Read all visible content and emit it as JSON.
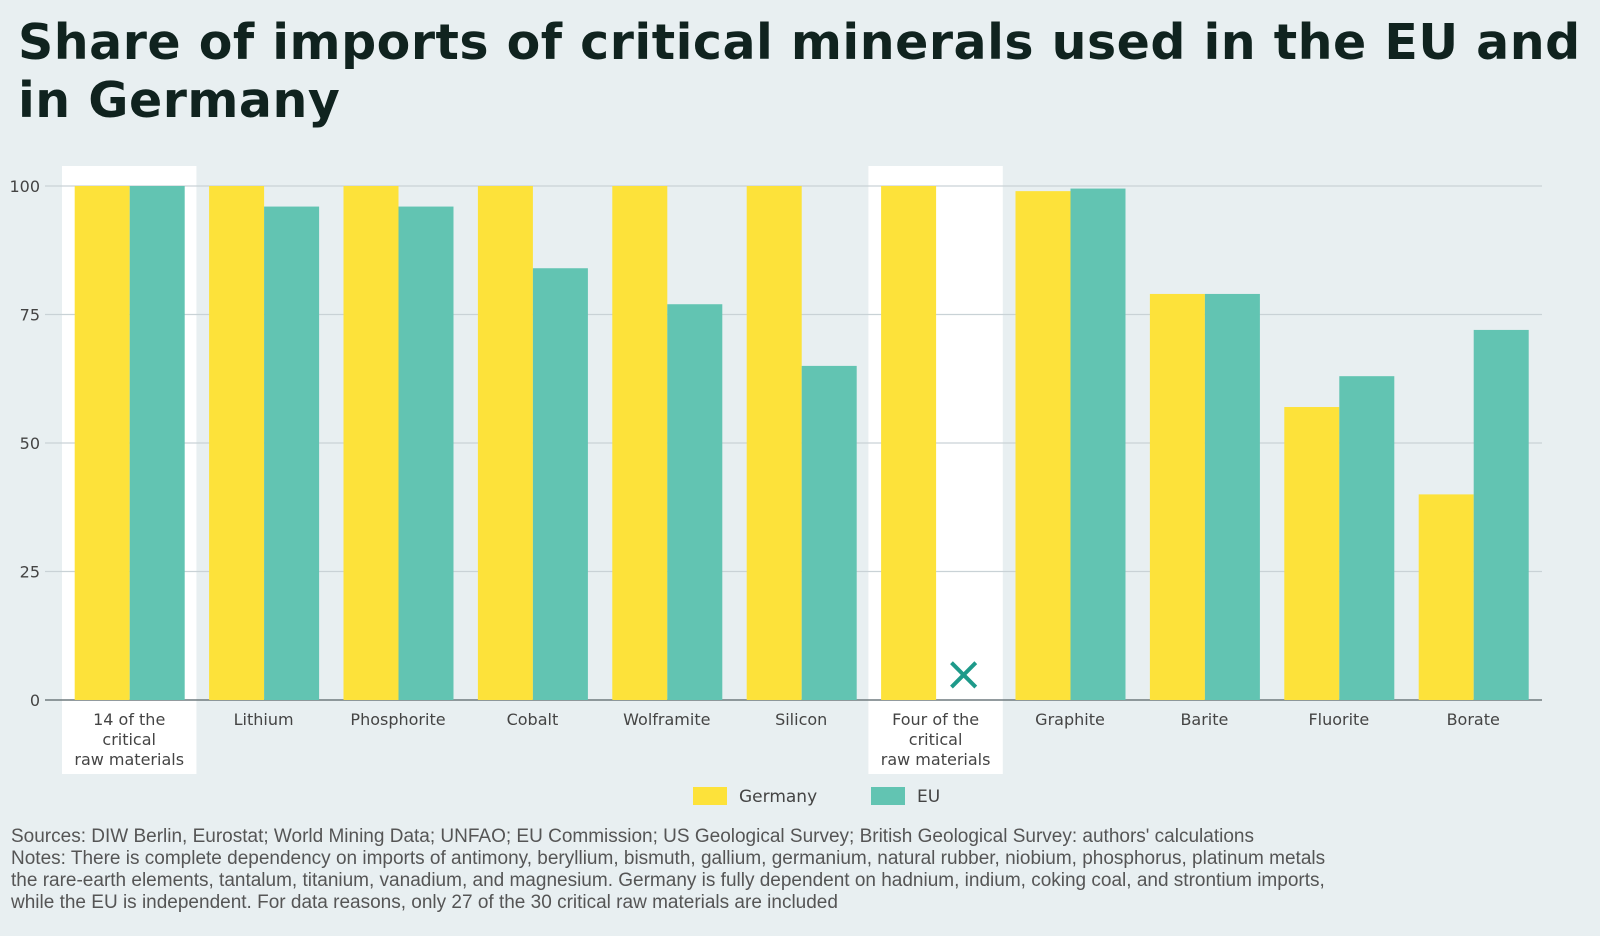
{
  "title": "Share of imports of critical minerals used in the EU and in Germany",
  "colors": {
    "Germany": "#fde23a",
    "EU": "#62c4b2",
    "highlight": "#ffffff",
    "marker": "#1e9a8a",
    "grid": "#c9d2d6",
    "background": "#e8eff1"
  },
  "chart_data": {
    "type": "bar",
    "categories": [
      "14 of the critical raw materials",
      "Lithium",
      "Phosphorite",
      "Cobalt",
      "Wolframite",
      "Silicon",
      "Four of the critical raw materials",
      "Graphite",
      "Barite",
      "Fluorite",
      "Borate"
    ],
    "category_lines": [
      [
        "14 of the",
        "critical",
        "raw materials"
      ],
      [
        "Lithium"
      ],
      [
        "Phosphorite"
      ],
      [
        "Cobalt"
      ],
      [
        "Wolframite"
      ],
      [
        "Silicon"
      ],
      [
        "Four of the",
        "critical",
        "raw materials"
      ],
      [
        "Graphite"
      ],
      [
        "Barite"
      ],
      [
        "Fluorite"
      ],
      [
        "Borate"
      ]
    ],
    "highlighted_categories": [
      "14 of the critical raw materials",
      "Four of the critical raw materials"
    ],
    "series": [
      {
        "name": "Germany",
        "values": [
          100,
          100,
          100,
          100,
          100,
          100,
          100,
          99,
          79,
          57,
          40
        ]
      },
      {
        "name": "EU",
        "values": [
          100,
          96,
          96,
          84,
          77,
          65,
          null,
          99.5,
          79,
          63,
          72
        ]
      }
    ],
    "missing_marker": "×",
    "ylim": [
      0,
      100
    ],
    "yticks": [
      0,
      25,
      50,
      75,
      100
    ],
    "grid": true,
    "legend": "bottom-center"
  },
  "footer": {
    "sources": "Sources: DIW Berlin, Eurostat; World Mining Data; UNFAO; EU Commission; US Geological Survey; British Geological Survey: authors' calculations",
    "notes": [
      "Notes: There is complete dependency on imports of antimony, beryllium, bismuth, gallium, germanium, natural rubber, niobium, phosphorus, platinum metals",
      "the rare-earth elements, tantalum, titanium, vanadium, and magnesium. Germany is fully dependent on hadnium, indium, coking coal, and strontium imports,",
      "while the EU is independent. For data reasons, only 27 of the 30 critical raw materials are included"
    ]
  }
}
